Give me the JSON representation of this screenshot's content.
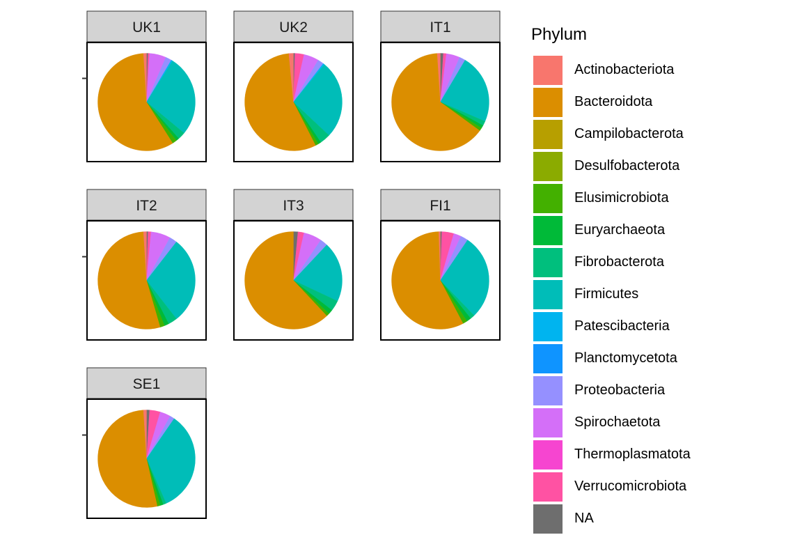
{
  "chart_data": {
    "type": "pie",
    "facet_var": "sample",
    "panels": [
      "UK1",
      "UK2",
      "IT1",
      "IT2",
      "IT3",
      "FI1",
      "SE1"
    ],
    "legend": {
      "title": "Phylum",
      "placement": "right"
    },
    "categories": [
      "Actinobacteriota",
      "Bacteroidota",
      "Campilobacterota",
      "Desulfobacterota",
      "Elusimicrobiota",
      "Euryarchaeota",
      "Fibrobacterota",
      "Firmicutes",
      "Patescibacteria",
      "Planctomycetota",
      "Proteobacteria",
      "Spirochaetota",
      "Thermoplasmatota",
      "Verrucomicrobiota",
      "NA"
    ],
    "colors": [
      "#F8766D",
      "#DB8E00",
      "#B79F00",
      "#8BAB00",
      "#43B000",
      "#00BA38",
      "#00BF7D",
      "#00BDB8",
      "#00B4EF",
      "#0F94FF",
      "#9590FF",
      "#D46FF8",
      "#F645D0",
      "#FF52A3",
      "#6E6E6E"
    ],
    "series": [
      {
        "name": "UK1",
        "values": [
          1.0,
          58.0,
          0,
          0,
          1.5,
          1.0,
          2.5,
          27.0,
          0.5,
          0,
          2.0,
          5.5,
          0,
          0.5,
          0.5
        ]
      },
      {
        "name": "UK2",
        "values": [
          1.5,
          56.0,
          0,
          0,
          1.0,
          1.0,
          3.5,
          26.0,
          0.5,
          0,
          2.0,
          5.0,
          0,
          3.0,
          0.5
        ]
      },
      {
        "name": "IT1",
        "values": [
          1.0,
          64.0,
          0,
          0,
          1.0,
          1.0,
          1.5,
          23.0,
          0,
          0,
          2.0,
          4.5,
          0,
          1.0,
          1.0
        ]
      },
      {
        "name": "IT2",
        "values": [
          1.0,
          53.5,
          0,
          0,
          1.5,
          1.5,
          3.0,
          29.0,
          0,
          0,
          2.5,
          6.5,
          0,
          1.0,
          0.5
        ]
      },
      {
        "name": "IT3",
        "values": [
          0,
          62.0,
          0,
          0,
          1.0,
          1.5,
          3.5,
          20.0,
          0,
          0,
          2.5,
          6.0,
          0,
          2.0,
          1.5
        ]
      },
      {
        "name": "FI1",
        "values": [
          0.5,
          57.5,
          0,
          0,
          1.5,
          1.5,
          1.5,
          28.5,
          0,
          0,
          2.5,
          2.5,
          0,
          4.0,
          0.5
        ]
      },
      {
        "name": "SE1",
        "values": [
          1.0,
          52.0,
          0,
          0,
          1.0,
          1.0,
          1.0,
          33.5,
          0,
          0,
          1.5,
          3.5,
          0,
          3.5,
          1.0
        ]
      }
    ]
  }
}
